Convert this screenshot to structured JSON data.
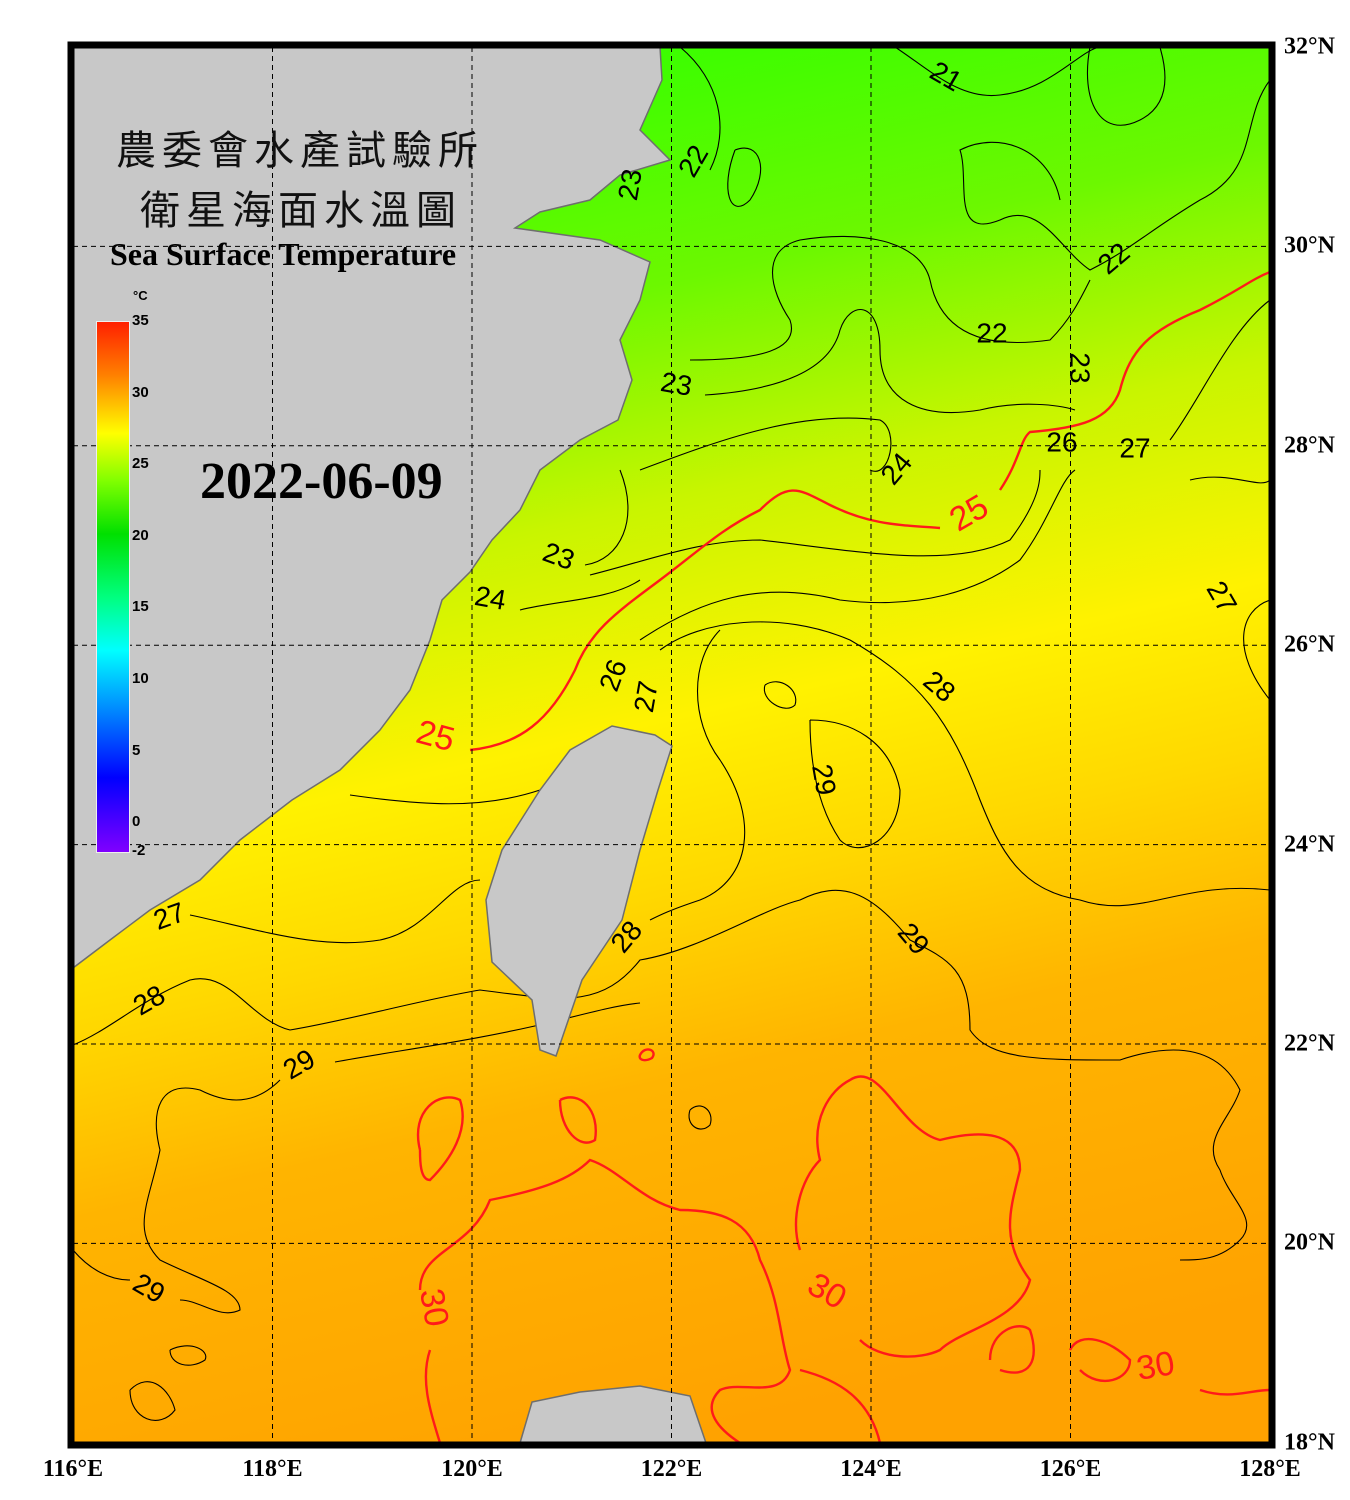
{
  "title": {
    "org_cn": "農委會水產試驗所",
    "product_cn": "衛星海面水溫圖",
    "product_en": "Sea Surface Temperature"
  },
  "date": "2022-06-09",
  "colorbar": {
    "unit": "°C",
    "range": [
      -2,
      35
    ],
    "ticks": [
      "35",
      "30",
      "25",
      "20",
      "15",
      "10",
      "5",
      "0",
      "-2"
    ]
  },
  "axes": {
    "lon_labels": [
      "116°E",
      "118°E",
      "120°E",
      "122°E",
      "124°E",
      "126°E",
      "128°E"
    ],
    "lat_labels": [
      "32°N",
      "30°N",
      "28°N",
      "26°N",
      "24°N",
      "22°N",
      "20°N",
      "18°N"
    ]
  },
  "colors": {
    "land": "#c8c8c8",
    "coast": "#6e6e6e",
    "contour": "#000000",
    "highlight_contour": "#ff1a1a",
    "frame": "#000000"
  },
  "contour_labels": [
    {
      "text": "21",
      "highlight": false
    },
    {
      "text": "22",
      "highlight": false
    },
    {
      "text": "22",
      "highlight": false
    },
    {
      "text": "22",
      "highlight": false
    },
    {
      "text": "23",
      "highlight": false
    },
    {
      "text": "23",
      "highlight": false
    },
    {
      "text": "23",
      "highlight": false
    },
    {
      "text": "23",
      "highlight": false
    },
    {
      "text": "24",
      "highlight": false
    },
    {
      "text": "24",
      "highlight": false
    },
    {
      "text": "25",
      "highlight": true
    },
    {
      "text": "25",
      "highlight": true
    },
    {
      "text": "26",
      "highlight": false
    },
    {
      "text": "26",
      "highlight": false
    },
    {
      "text": "27",
      "highlight": false
    },
    {
      "text": "27",
      "highlight": false
    },
    {
      "text": "27",
      "highlight": false
    },
    {
      "text": "27",
      "highlight": false
    },
    {
      "text": "28",
      "highlight": false
    },
    {
      "text": "28",
      "highlight": false
    },
    {
      "text": "28",
      "highlight": false
    },
    {
      "text": "29",
      "highlight": false
    },
    {
      "text": "29",
      "highlight": false
    },
    {
      "text": "29",
      "highlight": false
    },
    {
      "text": "29",
      "highlight": false
    },
    {
      "text": "30",
      "highlight": true
    },
    {
      "text": "30",
      "highlight": true
    },
    {
      "text": "30",
      "highlight": true
    }
  ]
}
